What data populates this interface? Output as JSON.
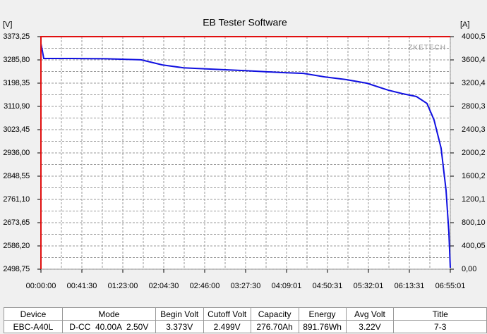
{
  "chart_data": {
    "type": "line",
    "title": "EB Tester Software",
    "ylabel": "[V]",
    "y2label": "[A]",
    "watermark": "ZKETECH",
    "x": [
      0,
      86,
      172,
      1803,
      3950,
      6096,
      7384,
      8672,
      10390,
      12536,
      14682,
      15970,
      17258,
      18546,
      19834,
      21122,
      21981,
      22840,
      23483,
      23912,
      24341,
      24642,
      24814,
      24901
    ],
    "series": [
      {
        "name": "Voltage",
        "color": "#1010e0",
        "axis": "y",
        "values": [
          3347,
          3320,
          3291,
          3291,
          3290,
          3286,
          3267,
          3256,
          3251,
          3245,
          3238,
          3235,
          3222,
          3212,
          3198,
          3172,
          3159,
          3148,
          3122,
          3060,
          2954,
          2796,
          2637,
          2504
        ]
      },
      {
        "name": "Current",
        "color": "#e01010",
        "axis": "y2",
        "x": [
          0,
          0,
          24901
        ],
        "values": [
          0,
          4000,
          4000
        ]
      }
    ],
    "xlim": [
      0,
      24901
    ],
    "xticks": [
      {
        "value": 0,
        "label": "00:00:00"
      },
      {
        "value": 2490,
        "label": "00:41:30"
      },
      {
        "value": 4980,
        "label": "01:23:00"
      },
      {
        "value": 7470,
        "label": "02:04:30"
      },
      {
        "value": 9960,
        "label": "02:46:00"
      },
      {
        "value": 12450,
        "label": "03:27:30"
      },
      {
        "value": 14941,
        "label": "04:09:01"
      },
      {
        "value": 17431,
        "label": "04:50:31"
      },
      {
        "value": 19921,
        "label": "05:32:01"
      },
      {
        "value": 22411,
        "label": "06:13:31"
      },
      {
        "value": 24901,
        "label": "06:55:01"
      }
    ],
    "ylim": [
      2498.75,
      3373.25
    ],
    "yticks": [
      {
        "value": 2498.75,
        "label": "2498,75"
      },
      {
        "value": 2586.2,
        "label": "2586,20"
      },
      {
        "value": 2673.65,
        "label": "2673,65"
      },
      {
        "value": 2761.1,
        "label": "2761,10"
      },
      {
        "value": 2848.55,
        "label": "2848,55"
      },
      {
        "value": 2936,
        "label": "2936,00"
      },
      {
        "value": 3023.45,
        "label": "3023,45"
      },
      {
        "value": 3110.9,
        "label": "3110,90"
      },
      {
        "value": 3198.35,
        "label": "3198,35"
      },
      {
        "value": 3285.8,
        "label": "3285,80"
      },
      {
        "value": 3373.25,
        "label": "3373,25"
      }
    ],
    "y2lim": [
      0,
      4000.5
    ],
    "y2ticks": [
      {
        "value": 0,
        "label": "0,00"
      },
      {
        "value": 400.05,
        "label": "400,05"
      },
      {
        "value": 800.1,
        "label": "800,10"
      },
      {
        "value": 1200.1,
        "label": "1200,1"
      },
      {
        "value": 1600.2,
        "label": "1600,2"
      },
      {
        "value": 2000.2,
        "label": "2000,2"
      },
      {
        "value": 2400.3,
        "label": "2400,3"
      },
      {
        "value": 2800.3,
        "label": "2800,3"
      },
      {
        "value": 3200.4,
        "label": "3200,4"
      },
      {
        "value": 3600.4,
        "label": "3600,4"
      },
      {
        "value": 4000.5,
        "label": "4000,5"
      }
    ],
    "grid": true
  },
  "table": {
    "header": [
      "Device",
      "Mode",
      "Begin Volt",
      "Cutoff Volt",
      "Capacity",
      "Energy",
      "Avg Volt",
      "Title"
    ],
    "rows": [
      [
        "EBC-A40L",
        "D-CC  40.00A  2.50V",
        "3.373V",
        "2.499V",
        "276.70Ah",
        "891.76Wh",
        "3.22V",
        "7-3"
      ]
    ]
  }
}
